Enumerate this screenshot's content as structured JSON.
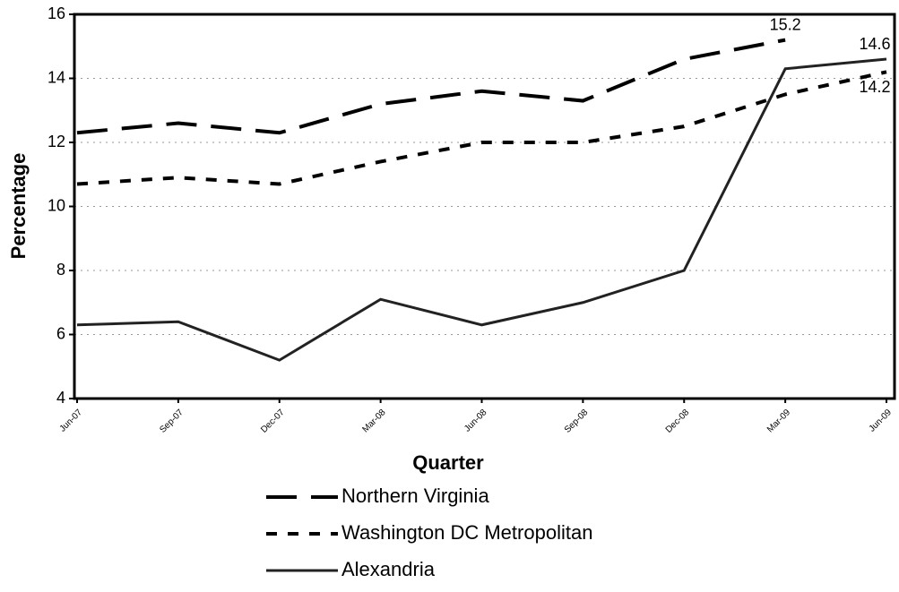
{
  "chart_data": {
    "type": "line",
    "x_label": "Quarter",
    "y_label": "Percentage",
    "categories": [
      "Jun-07",
      "Sep-07",
      "Dec-07",
      "Mar-08",
      "Jun-08",
      "Sep-08",
      "Dec-08",
      "Mar-09",
      "Jun-09"
    ],
    "series": [
      {
        "name": "Northern Virginia",
        "color": "#000000",
        "dash": "long",
        "values": [
          12.3,
          12.6,
          12.3,
          13.2,
          13.6,
          13.3,
          14.6,
          15.2,
          null
        ],
        "value_labels": [
          null,
          null,
          null,
          null,
          null,
          null,
          null,
          "15.2",
          null
        ]
      },
      {
        "name": "Washington DC Metropolitan",
        "color": "#000000",
        "dash": "short",
        "values": [
          10.7,
          10.9,
          10.7,
          11.4,
          12.0,
          12.0,
          12.5,
          13.5,
          14.2
        ],
        "value_labels": [
          null,
          null,
          null,
          null,
          null,
          null,
          null,
          null,
          "14.2"
        ]
      },
      {
        "name": "Alexandria",
        "color": "#222222",
        "dash": "solid",
        "values": [
          6.3,
          6.4,
          5.2,
          7.1,
          6.3,
          7.0,
          8.0,
          14.3,
          14.6
        ],
        "value_labels": [
          null,
          null,
          null,
          null,
          null,
          null,
          null,
          null,
          "14.6"
        ]
      }
    ],
    "ylim": [
      4,
      16
    ],
    "yticks": [
      4,
      6,
      8,
      10,
      12,
      14,
      16
    ],
    "grid": true,
    "legend": "bottom"
  }
}
